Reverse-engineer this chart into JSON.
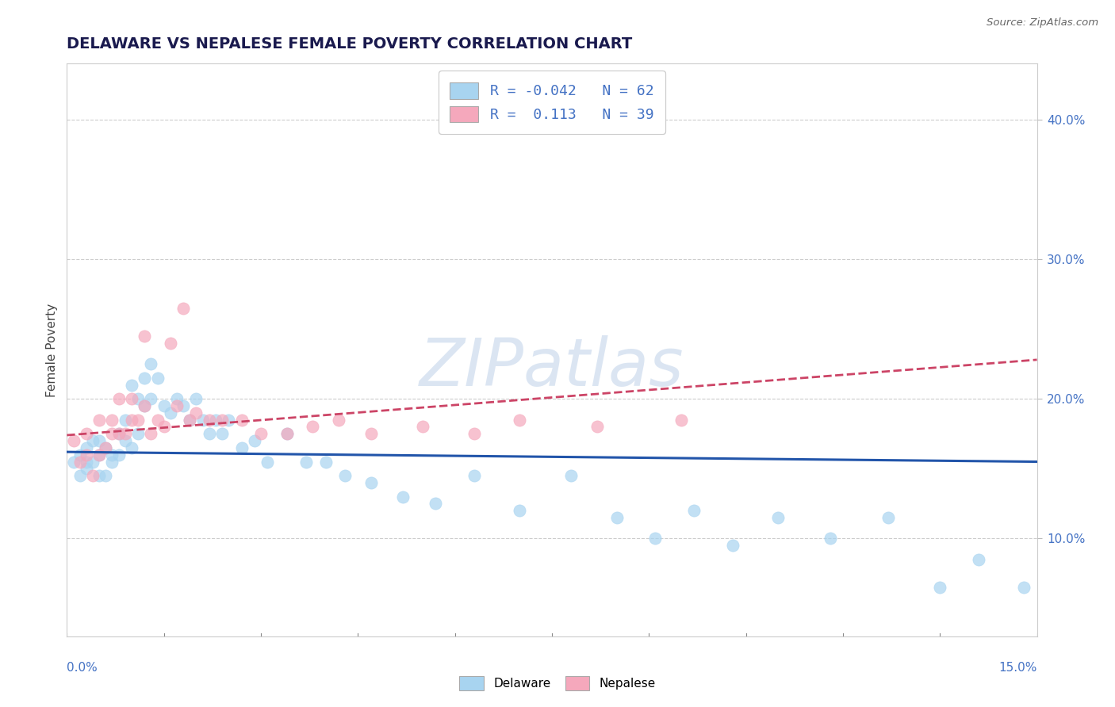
{
  "title": "DELAWARE VS NEPALESE FEMALE POVERTY CORRELATION CHART",
  "source_text": "Source: ZipAtlas.com",
  "ylabel": "Female Poverty",
  "right_yticks": [
    "10.0%",
    "20.0%",
    "30.0%",
    "40.0%"
  ],
  "right_ytick_vals": [
    0.1,
    0.2,
    0.3,
    0.4
  ],
  "xlim": [
    0.0,
    0.15
  ],
  "ylim": [
    0.03,
    0.44
  ],
  "delaware_color": "#a8d4f0",
  "nepalese_color": "#f5a8bc",
  "delaware_line_color": "#2255aa",
  "nepalese_line_color": "#cc4466",
  "watermark": "ZIPatlas",
  "legend_text1": "R = -0.042   N = 62",
  "legend_text2": "R =  0.113   N = 39",
  "legend_color": "#4472c4",
  "delaware_line_y0": 0.162,
  "delaware_line_y1": 0.155,
  "nepalese_line_y0": 0.174,
  "nepalese_line_y1": 0.228,
  "delaware_x": [
    0.001,
    0.002,
    0.002,
    0.003,
    0.003,
    0.003,
    0.004,
    0.004,
    0.005,
    0.005,
    0.005,
    0.006,
    0.006,
    0.007,
    0.007,
    0.008,
    0.008,
    0.009,
    0.009,
    0.01,
    0.01,
    0.011,
    0.011,
    0.012,
    0.012,
    0.013,
    0.013,
    0.014,
    0.015,
    0.016,
    0.017,
    0.018,
    0.019,
    0.02,
    0.021,
    0.022,
    0.023,
    0.024,
    0.025,
    0.027,
    0.029,
    0.031,
    0.034,
    0.037,
    0.04,
    0.043,
    0.047,
    0.052,
    0.057,
    0.063,
    0.07,
    0.078,
    0.085,
    0.091,
    0.097,
    0.103,
    0.11,
    0.118,
    0.127,
    0.135,
    0.141,
    0.148
  ],
  "delaware_y": [
    0.155,
    0.145,
    0.16,
    0.155,
    0.165,
    0.15,
    0.155,
    0.17,
    0.16,
    0.17,
    0.145,
    0.165,
    0.145,
    0.155,
    0.16,
    0.175,
    0.16,
    0.185,
    0.17,
    0.165,
    0.21,
    0.2,
    0.175,
    0.195,
    0.215,
    0.2,
    0.225,
    0.215,
    0.195,
    0.19,
    0.2,
    0.195,
    0.185,
    0.2,
    0.185,
    0.175,
    0.185,
    0.175,
    0.185,
    0.165,
    0.17,
    0.155,
    0.175,
    0.155,
    0.155,
    0.145,
    0.14,
    0.13,
    0.125,
    0.145,
    0.12,
    0.145,
    0.115,
    0.1,
    0.12,
    0.095,
    0.115,
    0.1,
    0.115,
    0.065,
    0.085,
    0.065
  ],
  "nepalese_x": [
    0.001,
    0.002,
    0.003,
    0.003,
    0.004,
    0.005,
    0.005,
    0.006,
    0.007,
    0.007,
    0.008,
    0.008,
    0.009,
    0.01,
    0.01,
    0.011,
    0.012,
    0.012,
    0.013,
    0.014,
    0.015,
    0.016,
    0.017,
    0.018,
    0.019,
    0.02,
    0.022,
    0.024,
    0.027,
    0.03,
    0.034,
    0.038,
    0.042,
    0.047,
    0.055,
    0.063,
    0.07,
    0.082,
    0.095
  ],
  "nepalese_y": [
    0.17,
    0.155,
    0.175,
    0.16,
    0.145,
    0.185,
    0.16,
    0.165,
    0.185,
    0.175,
    0.175,
    0.2,
    0.175,
    0.185,
    0.2,
    0.185,
    0.195,
    0.245,
    0.175,
    0.185,
    0.18,
    0.24,
    0.195,
    0.265,
    0.185,
    0.19,
    0.185,
    0.185,
    0.185,
    0.175,
    0.175,
    0.18,
    0.185,
    0.175,
    0.18,
    0.175,
    0.185,
    0.18,
    0.185
  ]
}
